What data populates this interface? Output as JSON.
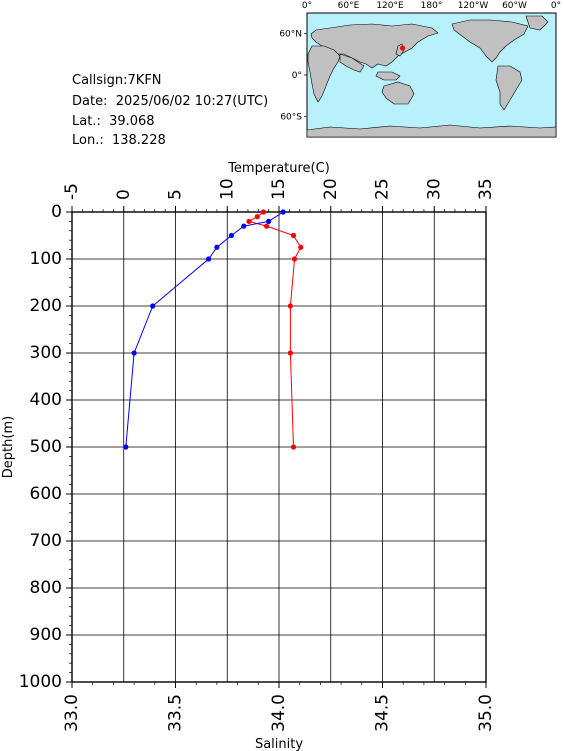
{
  "info": {
    "callsign": "Callsign:7KFN",
    "date": "Date:  2025/06/02 10:27(UTC)",
    "lat": "Lat.:  39.068",
    "lon": "Lon.:  138.228"
  },
  "map": {
    "top_labels": [
      "0°",
      "60°E",
      "120°E",
      "180°",
      "120°W",
      "60°W",
      "0°"
    ],
    "right_labels": [
      "60°N",
      "0°",
      "60°S"
    ],
    "ocean_color": "#b8f0fb",
    "land_color": "#c0c0c0",
    "station_color": "#ff0000",
    "station": {
      "lon": 138.228,
      "lat": 39.068
    }
  },
  "chart_data": {
    "type": "line",
    "axes": {
      "temperature": {
        "label": "Temperature(C)",
        "range": [
          -5,
          35
        ],
        "ticks": [
          "-5",
          "0",
          "5",
          "10",
          "15",
          "20",
          "25",
          "30",
          "35"
        ]
      },
      "salinity": {
        "label": "Salinity",
        "range": [
          33.0,
          35.0
        ],
        "ticks": [
          "33.0",
          "33.5",
          "34.0",
          "34.5",
          "35.0"
        ]
      },
      "depth": {
        "label": "Depth(m)",
        "range": [
          0,
          1000
        ],
        "ticks": [
          "0",
          "100",
          "200",
          "300",
          "400",
          "500",
          "600",
          "700",
          "800",
          "900",
          "1000"
        ]
      }
    },
    "grid": true,
    "series": [
      {
        "axis": "temperature",
        "color": "#ff0000",
        "points": [
          {
            "depth": 0,
            "value": 13.5
          },
          {
            "depth": 10,
            "value": 12.9
          },
          {
            "depth": 20,
            "value": 12.1
          },
          {
            "depth": 30,
            "value": 13.8
          },
          {
            "depth": 50,
            "value": 16.4
          },
          {
            "depth": 75,
            "value": 17.1
          },
          {
            "depth": 100,
            "value": 16.5
          },
          {
            "depth": 200,
            "value": 16.1
          },
          {
            "depth": 300,
            "value": 16.1
          },
          {
            "depth": 500,
            "value": 16.4
          }
        ]
      },
      {
        "axis": "salinity",
        "color": "#0000ff",
        "points": [
          {
            "depth": 0,
            "value": 34.02
          },
          {
            "depth": 20,
            "value": 33.95
          },
          {
            "depth": 30,
            "value": 33.83
          },
          {
            "depth": 50,
            "value": 33.77
          },
          {
            "depth": 75,
            "value": 33.7
          },
          {
            "depth": 100,
            "value": 33.66
          },
          {
            "depth": 200,
            "value": 33.39
          },
          {
            "depth": 300,
            "value": 33.3
          },
          {
            "depth": 500,
            "value": 33.26
          }
        ]
      }
    ]
  }
}
